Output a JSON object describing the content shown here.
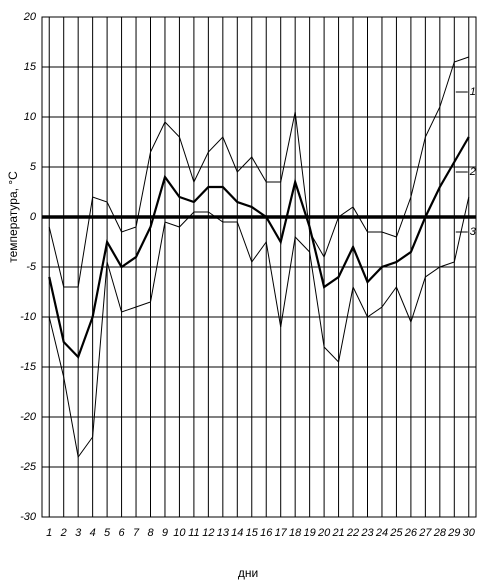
{
  "chart_data": {
    "type": "line",
    "y_label": "температура, °C",
    "x_label": "дни",
    "x": [
      1,
      2,
      3,
      4,
      5,
      6,
      7,
      8,
      9,
      10,
      11,
      12,
      13,
      14,
      15,
      16,
      17,
      18,
      19,
      20,
      21,
      22,
      23,
      24,
      25,
      26,
      27,
      28,
      29,
      30
    ],
    "xlim": [
      0.5,
      30.5
    ],
    "xticks": [
      1,
      2,
      3,
      4,
      5,
      6,
      7,
      8,
      9,
      10,
      11,
      12,
      13,
      14,
      15,
      16,
      17,
      18,
      19,
      20,
      21,
      22,
      23,
      24,
      25,
      26,
      27,
      28,
      29,
      30
    ],
    "ylim": [
      -30,
      20
    ],
    "yticks": [
      -30,
      -25,
      -20,
      -15,
      -10,
      -5,
      0,
      5,
      10,
      15,
      20
    ],
    "grid": true,
    "zero_line": true,
    "series": [
      {
        "name": "1",
        "color": "#000000",
        "width": 1,
        "values": [
          -1,
          -7,
          -7,
          2,
          1.5,
          -1.5,
          -1,
          6.5,
          9.5,
          8,
          3.5,
          6.5,
          8,
          4.5,
          6,
          3.5,
          3.5,
          10.5,
          -1.5,
          -4,
          0,
          1,
          -1.5,
          -1.5,
          -2,
          2,
          8,
          11,
          15.5,
          16
        ]
      },
      {
        "name": "2",
        "color": "#000000",
        "width": 2.2,
        "values": [
          -6,
          -12.5,
          -14,
          -10,
          -2.5,
          -5,
          -4,
          -1,
          4,
          2,
          1.5,
          3,
          3,
          1.5,
          1,
          0,
          -2.5,
          3.5,
          -1,
          -7,
          -6,
          -3,
          -6.5,
          -5,
          -4.5,
          -3.5,
          0,
          3,
          5.5,
          8
        ]
      },
      {
        "name": "3",
        "color": "#000000",
        "width": 1,
        "values": [
          -10,
          -16,
          -24,
          -22,
          -4.5,
          -9.5,
          -9,
          -8.5,
          -0.5,
          -1,
          0.5,
          0.5,
          -0.5,
          -0.5,
          -4.5,
          -2.5,
          -11,
          -2,
          -3.5,
          -13,
          -14.5,
          -7,
          -10,
          -9,
          -7,
          -10.5,
          -6,
          -5,
          -4.5,
          2
        ]
      }
    ]
  }
}
